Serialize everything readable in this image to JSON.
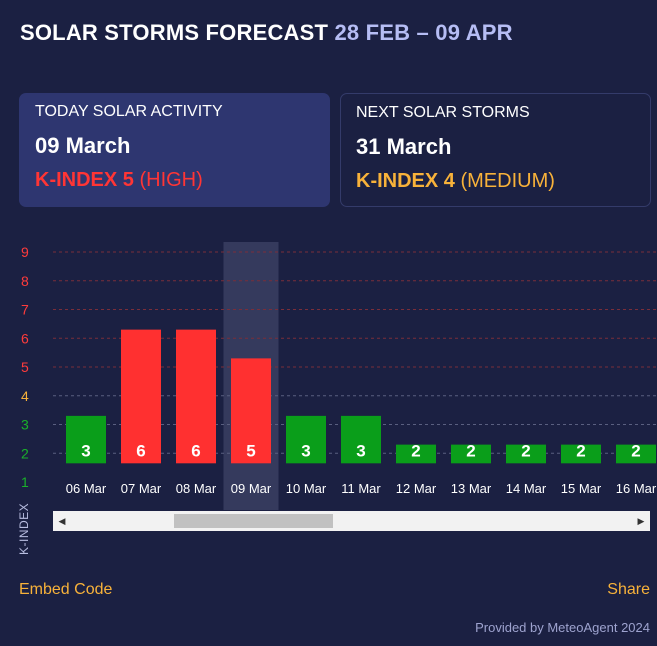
{
  "header": {
    "title": "SOLAR STORMS FORECAST",
    "range": "28 FEB – 09 APR"
  },
  "today": {
    "label": "TODAY SOLAR ACTIVITY",
    "date": "09 March",
    "kindex_label": "K-INDEX 5",
    "level": "(HIGH)"
  },
  "next": {
    "label": "NEXT SOLAR STORMS",
    "date": "31 March",
    "kindex_label": "K-INDEX 4",
    "level": "(MEDIUM)"
  },
  "chart_data": {
    "type": "bar",
    "ylabel": "K-INDEX",
    "ylim": [
      1,
      9
    ],
    "yticks": [
      1,
      2,
      3,
      4,
      5,
      6,
      7,
      8,
      9
    ],
    "categories": [
      "06 Mar",
      "07 Mar",
      "08 Mar",
      "09 Mar",
      "10 Mar",
      "11 Mar",
      "12 Mar",
      "13 Mar",
      "14 Mar",
      "15 Mar",
      "16 Mar"
    ],
    "values": [
      3,
      6,
      6,
      5,
      3,
      3,
      2,
      2,
      2,
      2,
      2
    ],
    "highlighted": "09 Mar",
    "colors": {
      "low": "#0a9e1a",
      "high": "#ff3030",
      "medium_tick": "#f8b23a",
      "high_tick": "#ff3b3b",
      "low_tick": "#19b02a",
      "grid": "#7a2e3a",
      "highlight": "#3a3f62"
    }
  },
  "footer": {
    "embed": "Embed Code",
    "share": "Share",
    "provided": "Provided by MeteoAgent 2024"
  },
  "scrollbar": {
    "left_icon": "scroll-left-icon",
    "right_icon": "scroll-right-icon"
  }
}
